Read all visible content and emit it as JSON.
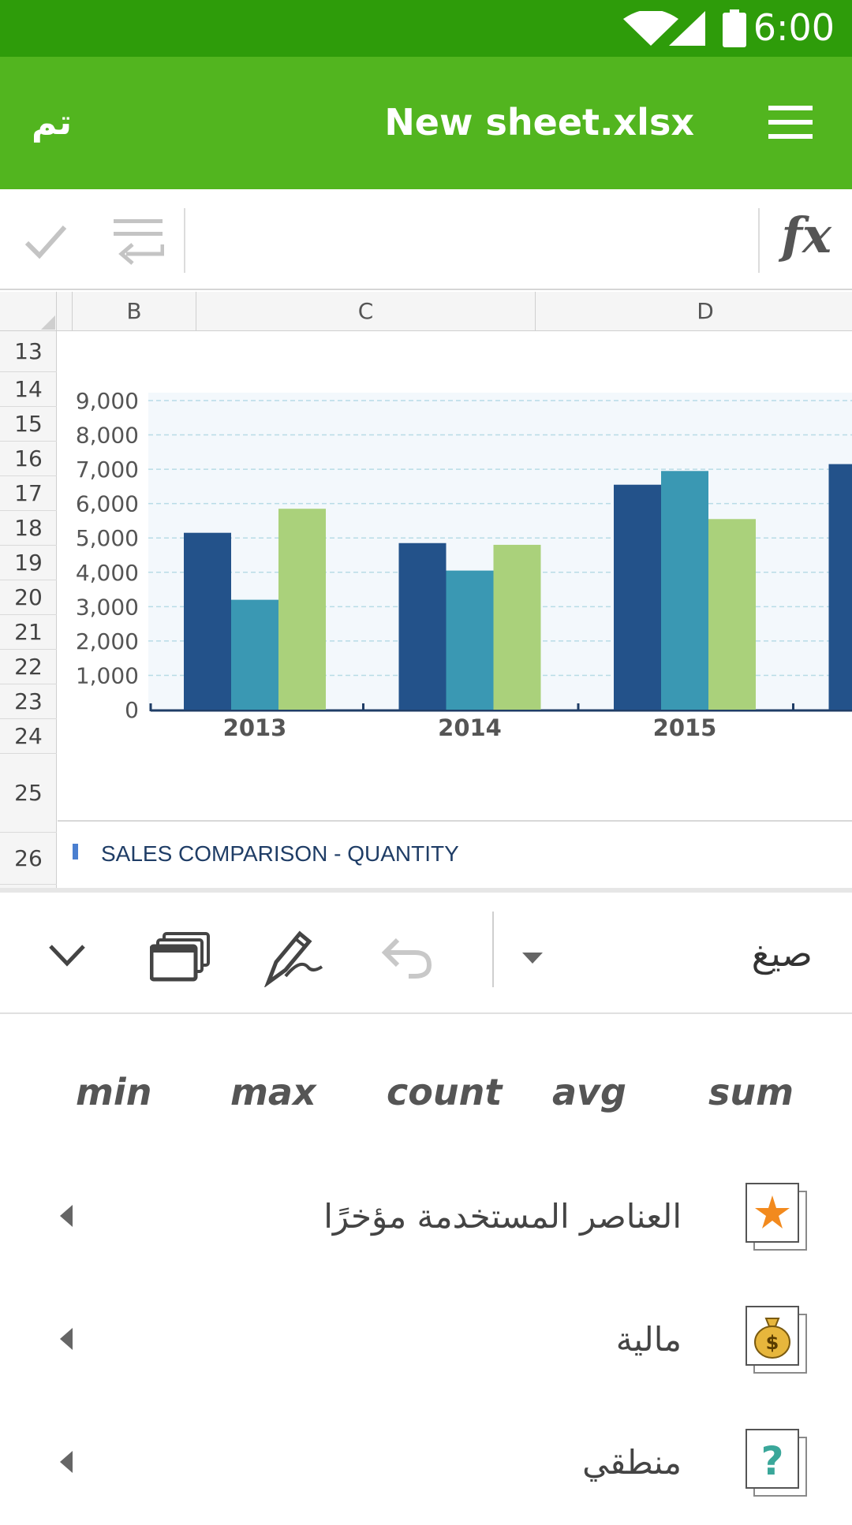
{
  "status_bar": {
    "time": "6:00"
  },
  "app_bar": {
    "done_label": "تم",
    "title": "New sheet.xlsx"
  },
  "sheet": {
    "columns": [
      "B",
      "C",
      "D"
    ],
    "rows": [
      "13",
      "14",
      "15",
      "16",
      "17",
      "18",
      "19",
      "20",
      "21",
      "22",
      "23",
      "24",
      "25",
      "26"
    ]
  },
  "chart_data": {
    "type": "bar",
    "title": "SALES COMPARISON - QUANTITY",
    "categories": [
      "2013",
      "2014",
      "2015",
      ""
    ],
    "series": [
      {
        "values": [
          5150,
          4850,
          6550,
          7150
        ],
        "color": "#23528a"
      },
      {
        "values": [
          3200,
          4050,
          6950,
          null
        ],
        "color": "#3a98b3"
      },
      {
        "values": [
          5850,
          4800,
          5550,
          null
        ],
        "color": "#aad17b"
      }
    ],
    "y_ticks": [
      "9,000",
      "8,000",
      "7,000",
      "6,000",
      "5,000",
      "4,000",
      "3,000",
      "2,000",
      "1,000",
      "0"
    ],
    "ylim": [
      0,
      9000
    ],
    "grid": true,
    "legend_color": "#4a7fd0"
  },
  "toolbar": {
    "formulas_label": "صيغ"
  },
  "functions": [
    "min",
    "max",
    "count",
    "avg",
    "sum"
  ],
  "categories": [
    {
      "label": "العناصر المستخدمة مؤخرًا",
      "icon": "star-icon",
      "color": "#f28a1e"
    },
    {
      "label": "مالية",
      "icon": "money-bag-icon",
      "color": "#e7b63c"
    },
    {
      "label": "منطقي",
      "icon": "question-icon",
      "color": "#3aa79a"
    }
  ],
  "colors": {
    "status_bar": "#2e9c0a",
    "app_bar": "#52b51f"
  }
}
